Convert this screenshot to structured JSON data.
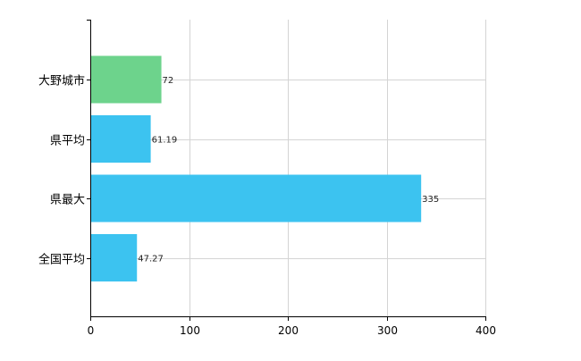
{
  "chart_data": {
    "type": "bar",
    "orientation": "horizontal",
    "categories": [
      "大野城市",
      "県平均",
      "県最大",
      "全国平均"
    ],
    "values": [
      72,
      61.19,
      335,
      47.27
    ],
    "value_labels": [
      "72",
      "61.19",
      "335",
      "47.27"
    ],
    "bar_colors": [
      "#6dd38c",
      "#3cc3f0",
      "#3cc3f0",
      "#3cc3f0"
    ],
    "xlim": [
      0,
      400
    ],
    "xticks": [
      0,
      100,
      200,
      300,
      400
    ],
    "xtick_labels": [
      "0",
      "100",
      "200",
      "300",
      "400"
    ],
    "grid": true,
    "title": "",
    "xlabel": "",
    "ylabel": ""
  }
}
